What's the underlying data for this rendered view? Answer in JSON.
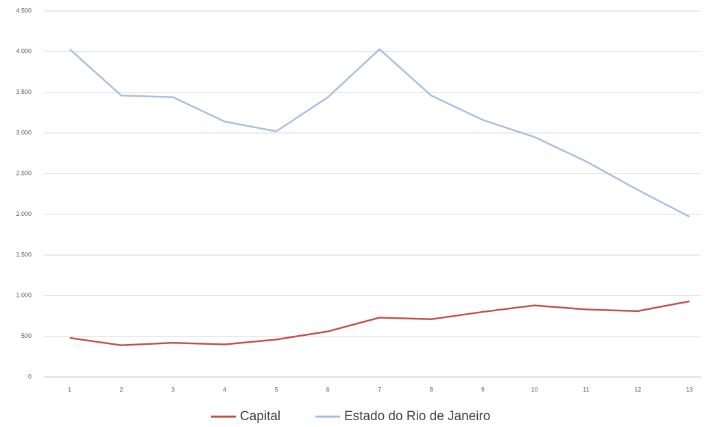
{
  "chart_data": {
    "type": "line",
    "categories": [
      1,
      2,
      3,
      4,
      5,
      6,
      7,
      8,
      9,
      10,
      11,
      12,
      13
    ],
    "series": [
      {
        "name": "Capital",
        "color": "#c0504d",
        "values": [
          480,
          390,
          420,
          400,
          460,
          560,
          730,
          710,
          800,
          880,
          830,
          810,
          930
        ]
      },
      {
        "name": "Estado do Rio de Janeiro",
        "color": "#a7bfde",
        "values": [
          4030,
          3460,
          3440,
          3140,
          3020,
          3440,
          4030,
          3460,
          3160,
          2950,
          2650,
          2300,
          1970
        ]
      }
    ],
    "ylim": [
      0,
      4500
    ],
    "yticks": [
      0,
      500,
      {
        "value": 1000,
        "label": "1.000"
      },
      {
        "value": 1500,
        "label": "1.500"
      },
      {
        "value": 2000,
        "label": "2.000"
      },
      {
        "value": 2500,
        "label": "2.500"
      },
      {
        "value": 3000,
        "label": "3.000"
      },
      {
        "value": 3500,
        "label": "3.500"
      },
      {
        "value": 4000,
        "label": "4.000"
      },
      {
        "value": 4500,
        "label": "4.500"
      }
    ],
    "grid": true,
    "legend": "bottom"
  }
}
